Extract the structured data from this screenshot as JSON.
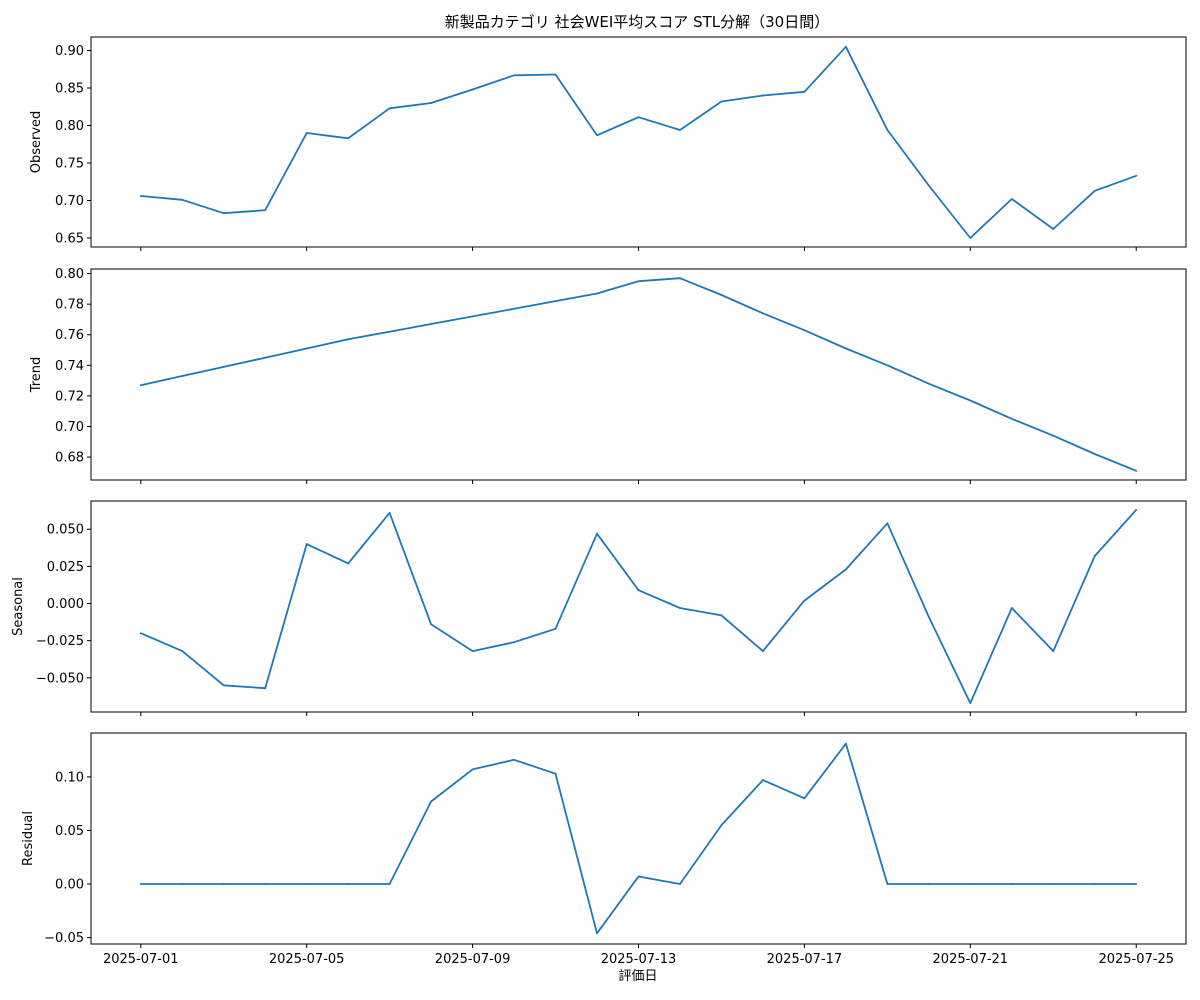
{
  "title": "新製品カテゴリ 社会WEI平均スコア STL分解（30日間）",
  "xlabel": "評価日",
  "line_color": "#1f77b4",
  "x_tick_labels": [
    "2025-07-01",
    "2025-07-05",
    "2025-07-09",
    "2025-07-13",
    "2025-07-17",
    "2025-07-21",
    "2025-07-25"
  ],
  "chart_data": [
    {
      "type": "line",
      "ylabel": "Observed",
      "x": [
        "2025-07-01",
        "2025-07-02",
        "2025-07-03",
        "2025-07-04",
        "2025-07-05",
        "2025-07-06",
        "2025-07-07",
        "2025-07-08",
        "2025-07-09",
        "2025-07-10",
        "2025-07-11",
        "2025-07-12",
        "2025-07-13",
        "2025-07-14",
        "2025-07-15",
        "2025-07-16",
        "2025-07-17",
        "2025-07-18",
        "2025-07-19",
        "2025-07-20",
        "2025-07-21",
        "2025-07-22",
        "2025-07-23",
        "2025-07-24",
        "2025-07-25"
      ],
      "values": [
        0.706,
        0.701,
        0.683,
        0.687,
        0.79,
        0.783,
        0.823,
        0.83,
        0.848,
        0.867,
        0.868,
        0.787,
        0.811,
        0.794,
        0.832,
        0.84,
        0.845,
        0.905,
        0.794,
        0.72,
        0.65,
        0.702,
        0.662,
        0.713,
        0.733
      ],
      "ylim": [
        0.638,
        0.918
      ],
      "yticks": [
        0.65,
        0.7,
        0.75,
        0.8,
        0.85,
        0.9
      ],
      "ytick_labels": [
        "0.65",
        "0.70",
        "0.75",
        "0.80",
        "0.85",
        "0.90"
      ]
    },
    {
      "type": "line",
      "ylabel": "Trend",
      "x": [
        "2025-07-01",
        "2025-07-02",
        "2025-07-03",
        "2025-07-04",
        "2025-07-05",
        "2025-07-06",
        "2025-07-07",
        "2025-07-08",
        "2025-07-09",
        "2025-07-10",
        "2025-07-11",
        "2025-07-12",
        "2025-07-13",
        "2025-07-14",
        "2025-07-15",
        "2025-07-16",
        "2025-07-17",
        "2025-07-18",
        "2025-07-19",
        "2025-07-20",
        "2025-07-21",
        "2025-07-22",
        "2025-07-23",
        "2025-07-24",
        "2025-07-25"
      ],
      "values": [
        0.727,
        0.733,
        0.739,
        0.745,
        0.751,
        0.757,
        0.762,
        0.767,
        0.772,
        0.777,
        0.782,
        0.787,
        0.795,
        0.797,
        0.786,
        0.774,
        0.763,
        0.751,
        0.74,
        0.728,
        0.717,
        0.705,
        0.694,
        0.682,
        0.671
      ],
      "ylim": [
        0.665,
        0.803
      ],
      "yticks": [
        0.68,
        0.7,
        0.72,
        0.74,
        0.76,
        0.78,
        0.8
      ],
      "ytick_labels": [
        "0.68",
        "0.70",
        "0.72",
        "0.74",
        "0.76",
        "0.78",
        "0.80"
      ]
    },
    {
      "type": "line",
      "ylabel": "Seasonal",
      "x": [
        "2025-07-01",
        "2025-07-02",
        "2025-07-03",
        "2025-07-04",
        "2025-07-05",
        "2025-07-06",
        "2025-07-07",
        "2025-07-08",
        "2025-07-09",
        "2025-07-10",
        "2025-07-11",
        "2025-07-12",
        "2025-07-13",
        "2025-07-14",
        "2025-07-15",
        "2025-07-16",
        "2025-07-17",
        "2025-07-18",
        "2025-07-19",
        "2025-07-20",
        "2025-07-21",
        "2025-07-22",
        "2025-07-23",
        "2025-07-24",
        "2025-07-25"
      ],
      "values": [
        -0.02,
        -0.032,
        -0.055,
        -0.057,
        0.04,
        0.027,
        0.061,
        -0.014,
        -0.032,
        -0.026,
        -0.017,
        0.047,
        0.009,
        -0.003,
        -0.008,
        -0.032,
        0.002,
        0.023,
        0.054,
        -0.009,
        -0.067,
        -0.003,
        -0.032,
        0.032,
        0.063
      ],
      "ylim": [
        -0.073,
        0.069
      ],
      "yticks": [
        -0.05,
        -0.025,
        0.0,
        0.025,
        0.05
      ],
      "ytick_labels": [
        "−0.050",
        "−0.025",
        "0.000",
        "0.025",
        "0.050"
      ]
    },
    {
      "type": "line",
      "ylabel": "Residual",
      "x": [
        "2025-07-01",
        "2025-07-02",
        "2025-07-03",
        "2025-07-04",
        "2025-07-05",
        "2025-07-06",
        "2025-07-07",
        "2025-07-08",
        "2025-07-09",
        "2025-07-10",
        "2025-07-11",
        "2025-07-12",
        "2025-07-13",
        "2025-07-14",
        "2025-07-15",
        "2025-07-16",
        "2025-07-17",
        "2025-07-18",
        "2025-07-19",
        "2025-07-20",
        "2025-07-21",
        "2025-07-22",
        "2025-07-23",
        "2025-07-24",
        "2025-07-25"
      ],
      "values": [
        0.0,
        0.0,
        0.0,
        0.0,
        0.0,
        0.0,
        0.0,
        0.077,
        0.107,
        0.116,
        0.103,
        -0.046,
        0.007,
        0.0,
        0.055,
        0.097,
        0.08,
        0.131,
        0.0,
        0.0,
        0.0,
        0.0,
        0.0,
        0.0,
        0.0
      ],
      "ylim": [
        -0.056,
        0.141
      ],
      "yticks": [
        -0.05,
        0.0,
        0.05,
        0.1
      ],
      "ytick_labels": [
        "−0.05",
        "0.00",
        "0.05",
        "0.10"
      ]
    }
  ]
}
